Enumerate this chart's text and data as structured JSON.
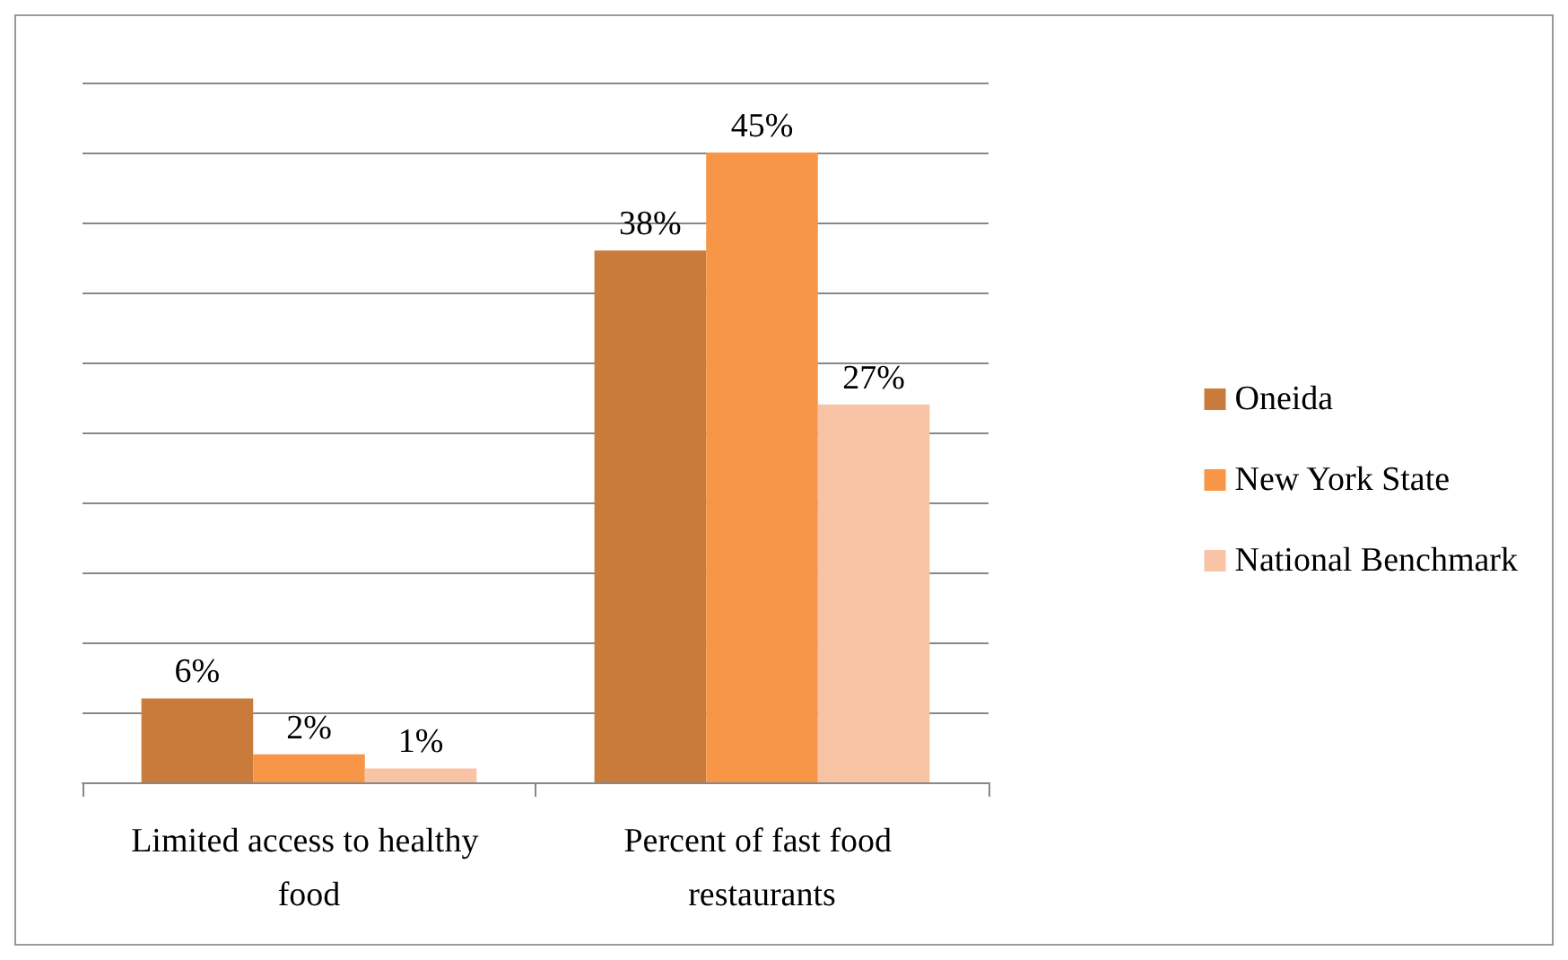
{
  "chart_data": {
    "type": "bar",
    "categories": [
      "Limited access to healthy food",
      "Percent of fast food restaurants"
    ],
    "series": [
      {
        "name": "Oneida",
        "color": "#c87b3a",
        "values": [
          6,
          38
        ],
        "value_labels": [
          "6%",
          "38%"
        ]
      },
      {
        "name": "New York State",
        "color": "#f79646",
        "values": [
          2,
          45
        ],
        "value_labels": [
          "2%",
          "45%"
        ]
      },
      {
        "name": "National Benchmark",
        "color": "#f9c3a6",
        "values": [
          1,
          27
        ],
        "value_labels": [
          "1%",
          "27%"
        ]
      }
    ],
    "ylim": [
      0,
      50
    ],
    "yticks": [
      {
        "value": 0,
        "label": null
      },
      {
        "value": 5,
        "label": null
      },
      {
        "value": 10,
        "label": null
      },
      {
        "value": 15,
        "label": null
      },
      {
        "value": 20,
        "label": null
      },
      {
        "value": 25,
        "label": null
      },
      {
        "value": 30,
        "label": null
      },
      {
        "value": 35,
        "label": null
      },
      {
        "value": 40,
        "label": null
      },
      {
        "value": 45,
        "label": null
      },
      {
        "value": 50,
        "label": null
      }
    ],
    "grid": "y",
    "legend": "right",
    "tick_labels": "x"
  }
}
